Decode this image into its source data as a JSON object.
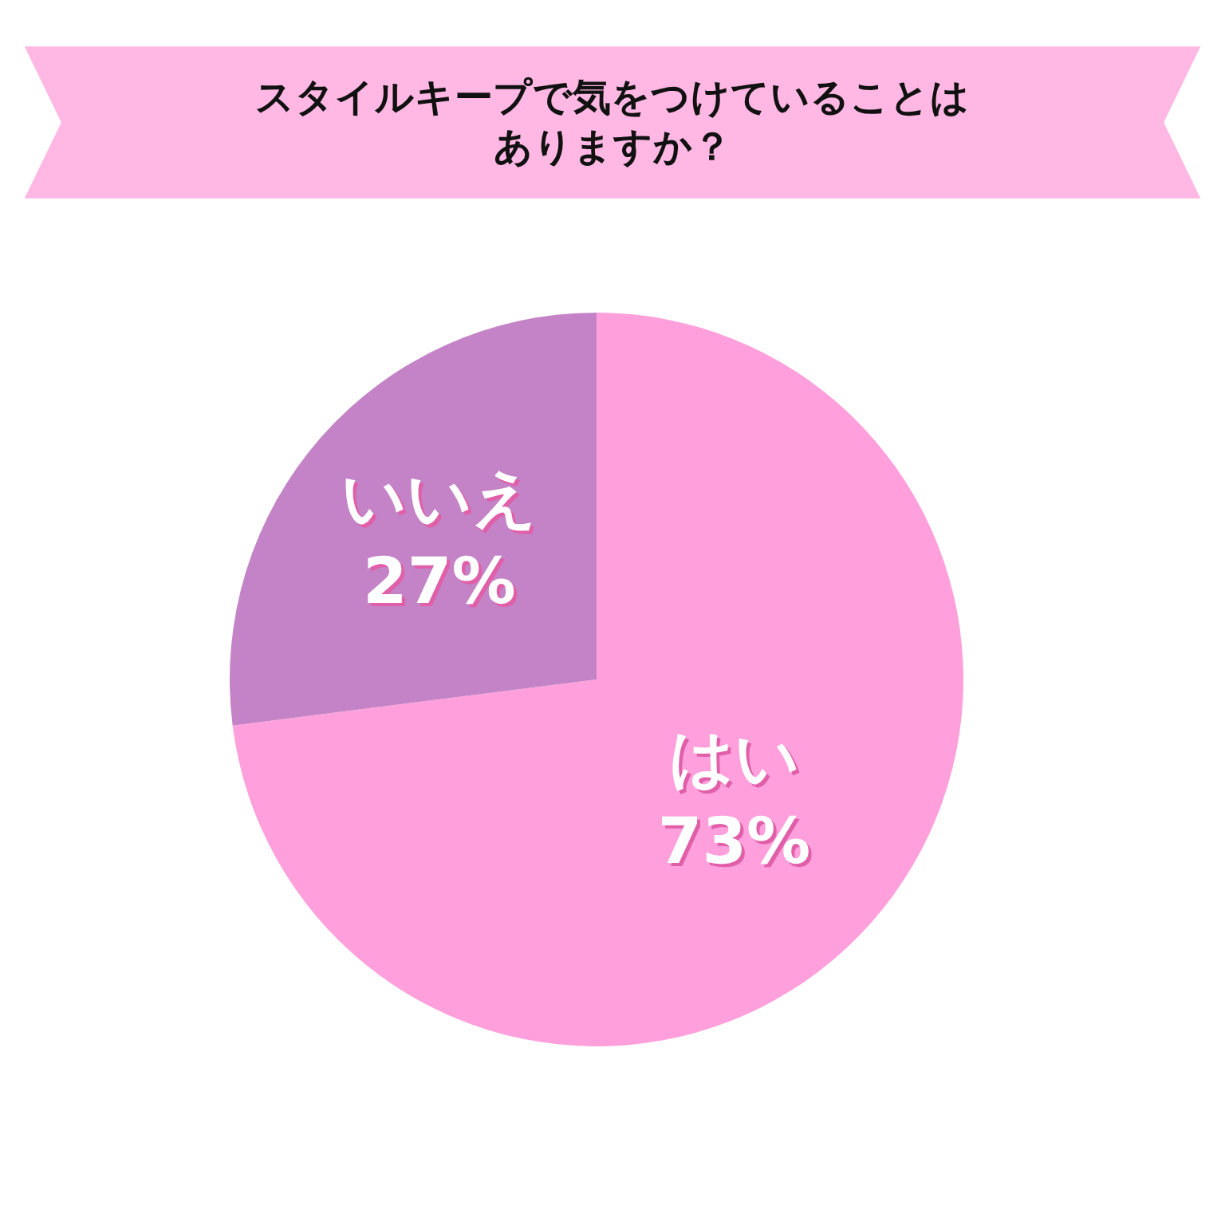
{
  "chart_data": {
    "type": "pie",
    "title": "スタイルキープで気をつけていることはありますか？",
    "categories": [
      "はい",
      "いいえ"
    ],
    "values": [
      73,
      27
    ],
    "colors": [
      "#ffa0dc",
      "#c383c6"
    ],
    "value_labels": [
      "73%",
      "27%"
    ],
    "legend": false
  }
}
